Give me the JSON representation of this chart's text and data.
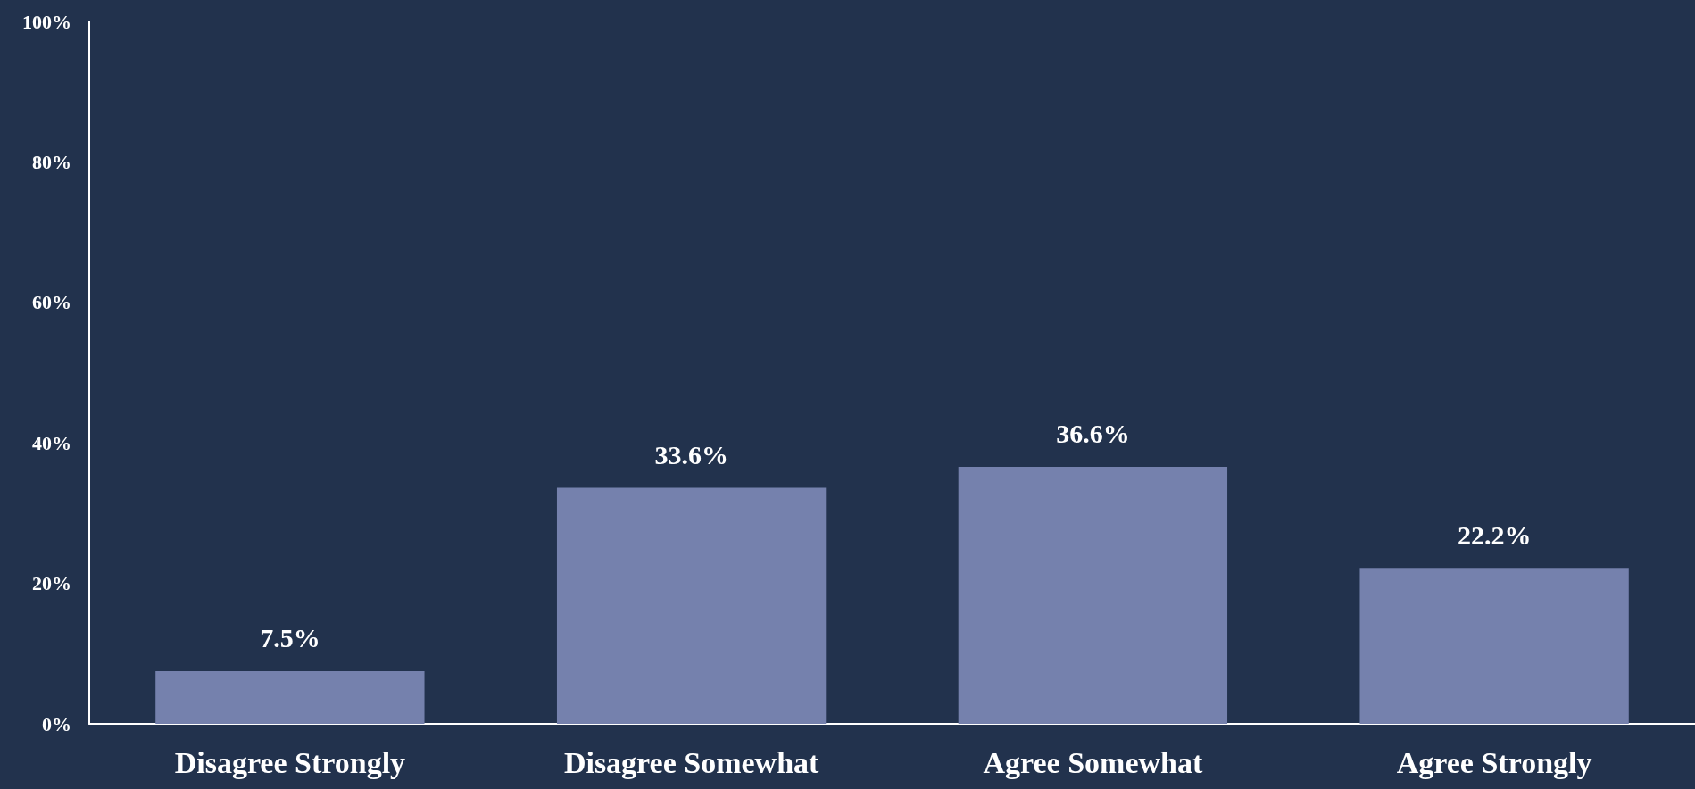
{
  "chart_data": {
    "type": "bar",
    "categories": [
      "Disagree Strongly",
      "Disagree Somewhat",
      "Agree Somewhat",
      "Agree Strongly"
    ],
    "values": [
      7.5,
      33.6,
      36.6,
      22.2
    ],
    "color": "#7581ad",
    "value_labels": [
      "7.5%",
      "33.6%",
      "36.6%",
      "22.2%"
    ],
    "ylim": [
      0,
      100
    ],
    "yticks": [
      {
        "value": 0,
        "label": "0%"
      },
      {
        "value": 20,
        "label": "20%"
      },
      {
        "value": 40,
        "label": "40%"
      },
      {
        "value": 60,
        "label": "60%"
      },
      {
        "value": 80,
        "label": "80%"
      },
      {
        "value": 100,
        "label": "100%"
      }
    ],
    "grid": false
  }
}
